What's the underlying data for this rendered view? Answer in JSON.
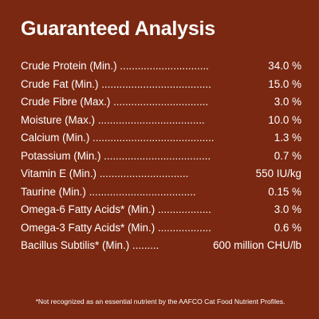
{
  "header": {
    "title": "Guaranteed Analysis"
  },
  "rows": [
    {
      "label": "Crude Protein (Min.) ..............................",
      "value": "34.0 %"
    },
    {
      "label": "Crude Fat (Min.) .....................................",
      "value": "15.0 %"
    },
    {
      "label": "Crude Fibre (Max.) ................................",
      "value": "3.0 %"
    },
    {
      "label": "Moisture (Max.) ....................................",
      "value": "10.0 %"
    },
    {
      "label": "Calcium (Min.) .........................................",
      "value": "1.3 %"
    },
    {
      "label": "Potassium (Min.) ....................................",
      "value": "0.7 %"
    },
    {
      "label": "Vitamin E (Min.) ..............................",
      "value": "550 IU/kg"
    },
    {
      "label": "Taurine (Min.) ....................................",
      "value": "0.15 %"
    },
    {
      "label": "Omega-6 Fatty Acids*  (Min.) ..................",
      "value": "3.0 %"
    },
    {
      "label": "Omega-3 Fatty Acids*  (Min.) ..................",
      "value": "0.6 %"
    },
    {
      "label": "Bacillus Subtilis* (Min.) .........",
      "value": "600 million CHU/lb"
    }
  ],
  "footnote": "*Not recognized as an essential nutrient by the AAFCO Cat Food Nutrient Profiles.",
  "colors": {
    "background": "#7a2812",
    "text": "#ffffff"
  }
}
